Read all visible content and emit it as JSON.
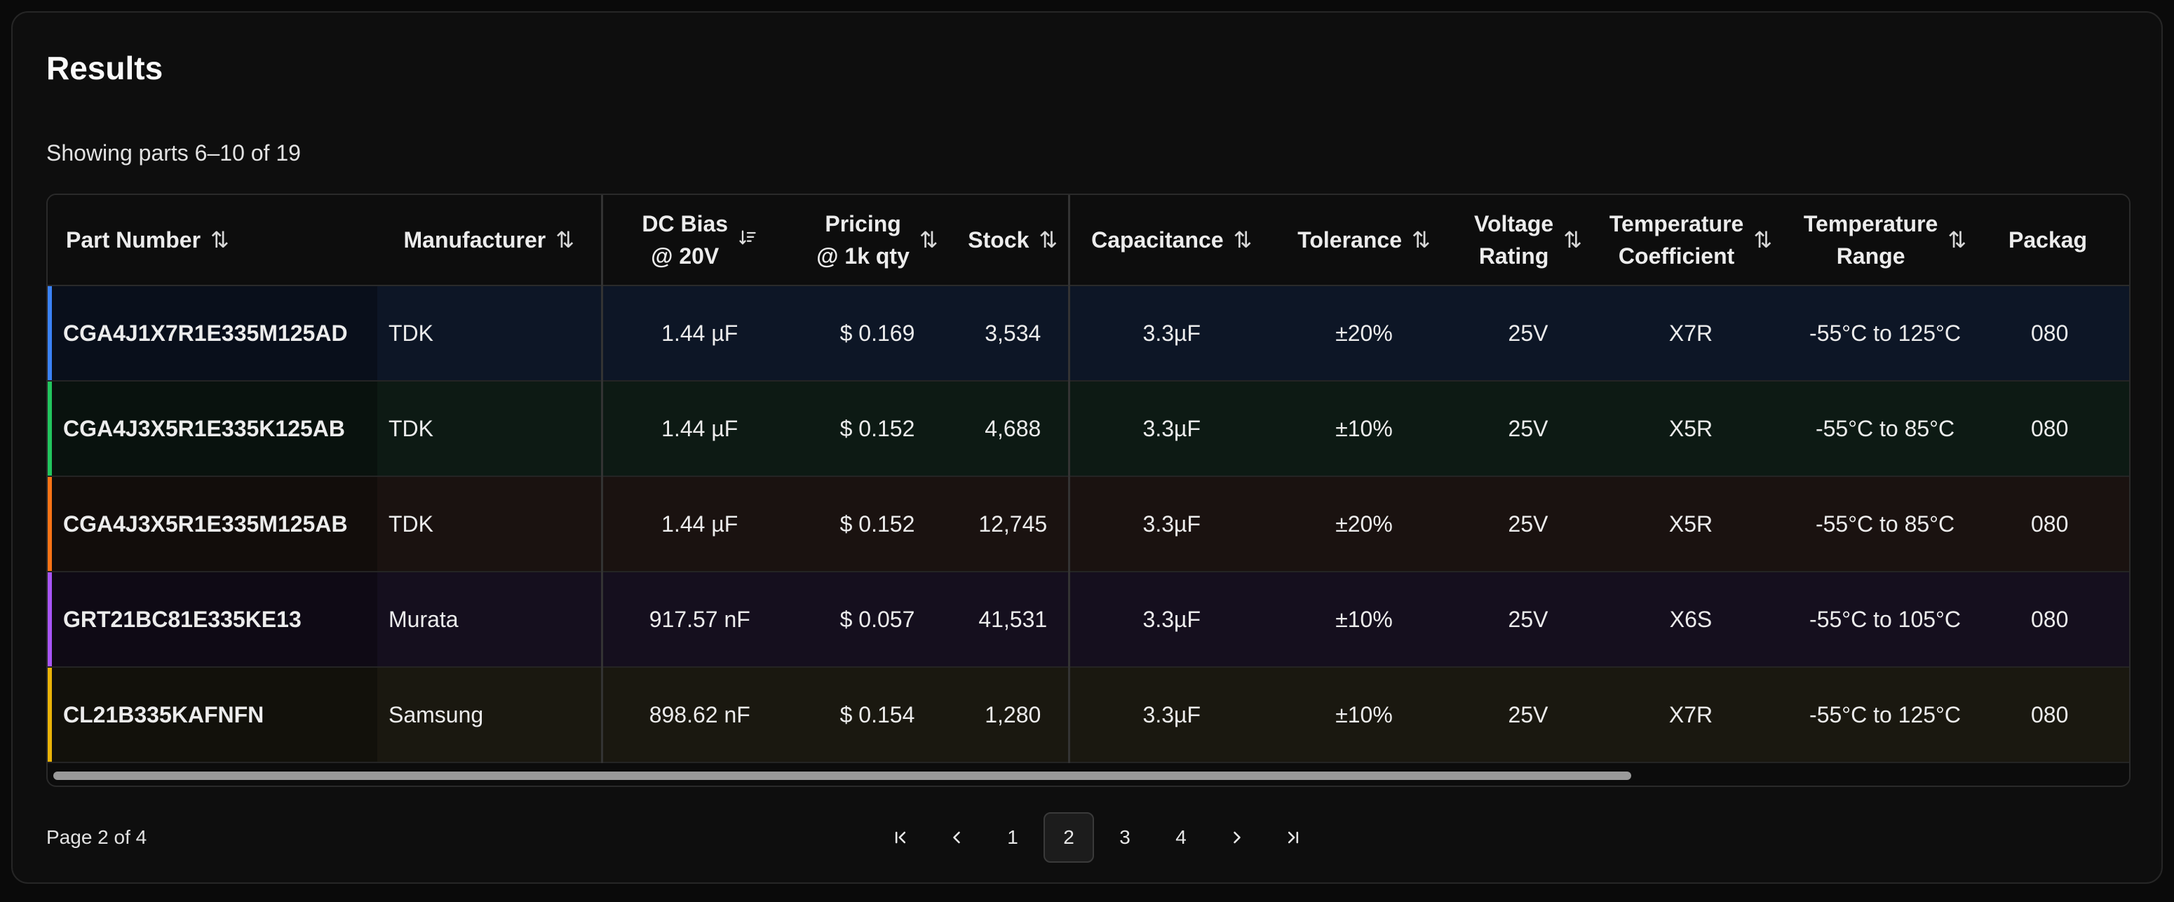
{
  "title": "Results",
  "subtitle": "Showing parts 6–10 of 19",
  "columns": {
    "part_number": "Part Number",
    "manufacturer": "Manufacturer",
    "dc_bias": [
      "DC Bias",
      "@ 20V"
    ],
    "pricing": [
      "Pricing",
      "@ 1k qty"
    ],
    "stock": "Stock",
    "capacitance": "Capacitance",
    "tolerance": "Tolerance",
    "voltage": [
      "Voltage",
      "Rating"
    ],
    "temp_coeff": [
      "Temperature",
      "Coefficient"
    ],
    "temp_range": [
      "Temperature",
      "Range"
    ],
    "package": "Packag"
  },
  "sort_icon": "⇅",
  "sort_active_icon": "sort-descending-icon",
  "row_accent_colors": [
    "#3b82f6",
    "#22c55e",
    "#f97316",
    "#a855f7",
    "#eab308"
  ],
  "rows": [
    {
      "part": "CGA4J1X7R1E335M125AD",
      "mfr": "TDK",
      "dc_bias": "1.44 µF",
      "price": "$ 0.169",
      "stock": "3,534",
      "cap": "3.3µF",
      "tol": "±20%",
      "volt": "25V",
      "tc": "X7R",
      "range": "-55°C to 125°C",
      "pkg": "080"
    },
    {
      "part": "CGA4J3X5R1E335K125AB",
      "mfr": "TDK",
      "dc_bias": "1.44 µF",
      "price": "$ 0.152",
      "stock": "4,688",
      "cap": "3.3µF",
      "tol": "±10%",
      "volt": "25V",
      "tc": "X5R",
      "range": "-55°C to 85°C",
      "pkg": "080"
    },
    {
      "part": "CGA4J3X5R1E335M125AB",
      "mfr": "TDK",
      "dc_bias": "1.44 µF",
      "price": "$ 0.152",
      "stock": "12,745",
      "cap": "3.3µF",
      "tol": "±20%",
      "volt": "25V",
      "tc": "X5R",
      "range": "-55°C to 85°C",
      "pkg": "080"
    },
    {
      "part": "GRT21BC81E335KE13",
      "mfr": "Murata",
      "dc_bias": "917.57 nF",
      "price": "$ 0.057",
      "stock": "41,531",
      "cap": "3.3µF",
      "tol": "±10%",
      "volt": "25V",
      "tc": "X6S",
      "range": "-55°C to 105°C",
      "pkg": "080"
    },
    {
      "part": "CL21B335KAFNFN",
      "mfr": "Samsung",
      "dc_bias": "898.62 nF",
      "price": "$ 0.154",
      "stock": "1,280",
      "cap": "3.3µF",
      "tol": "±10%",
      "volt": "25V",
      "tc": "X7R",
      "range": "-55°C to 125°C",
      "pkg": "080"
    }
  ],
  "pagination": {
    "info": "Page 2 of 4",
    "pages": [
      "1",
      "2",
      "3",
      "4"
    ],
    "current": "2"
  }
}
